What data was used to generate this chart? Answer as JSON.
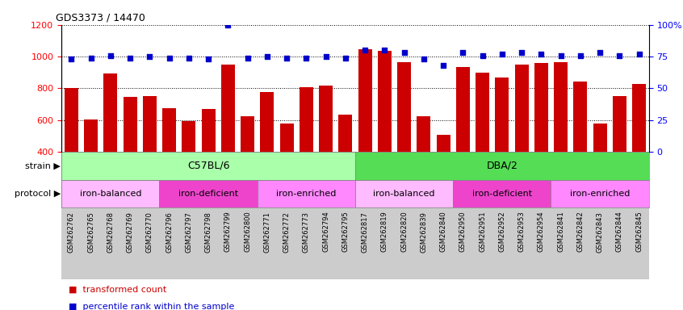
{
  "title": "GDS3373 / 14470",
  "samples": [
    "GSM262762",
    "GSM262765",
    "GSM262768",
    "GSM262769",
    "GSM262770",
    "GSM262796",
    "GSM262797",
    "GSM262798",
    "GSM262799",
    "GSM262800",
    "GSM262771",
    "GSM262772",
    "GSM262773",
    "GSM262794",
    "GSM262795",
    "GSM262817",
    "GSM262819",
    "GSM262820",
    "GSM262839",
    "GSM262840",
    "GSM262950",
    "GSM262951",
    "GSM262952",
    "GSM262953",
    "GSM262954",
    "GSM262841",
    "GSM262842",
    "GSM262843",
    "GSM262844",
    "GSM262845"
  ],
  "transformed_count": [
    800,
    605,
    895,
    748,
    752,
    675,
    595,
    670,
    950,
    625,
    775,
    580,
    808,
    820,
    635,
    1048,
    1035,
    965,
    622,
    505,
    935,
    900,
    870,
    950,
    960,
    965,
    843,
    580,
    750,
    830
  ],
  "percentile_rank": [
    73,
    74,
    76,
    74,
    75,
    74,
    74,
    73,
    100,
    74,
    75,
    74,
    74,
    75,
    74,
    80,
    80,
    78,
    73,
    68,
    78,
    76,
    77,
    78,
    77,
    76,
    76,
    78,
    76,
    77
  ],
  "bar_color": "#cc0000",
  "dot_color": "#0000cc",
  "ylim_left": [
    400,
    1200
  ],
  "ylim_right": [
    0,
    100
  ],
  "yticks_left": [
    400,
    600,
    800,
    1000,
    1200
  ],
  "yticks_right": [
    0,
    25,
    50,
    75,
    100
  ],
  "ytick_labels_right": [
    "0",
    "25",
    "50",
    "75",
    "100%"
  ],
  "strain_groups": [
    {
      "label": "C57BL/6",
      "start": 0,
      "end": 15,
      "color": "#aaffaa"
    },
    {
      "label": "DBA/2",
      "start": 15,
      "end": 30,
      "color": "#55dd55"
    }
  ],
  "protocol_groups": [
    {
      "label": "iron-balanced",
      "start": 0,
      "end": 5,
      "color": "#ffbbff"
    },
    {
      "label": "iron-deficient",
      "start": 5,
      "end": 10,
      "color": "#ee44cc"
    },
    {
      "label": "iron-enriched",
      "start": 10,
      "end": 15,
      "color": "#ff88ff"
    },
    {
      "label": "iron-balanced",
      "start": 15,
      "end": 20,
      "color": "#ffbbff"
    },
    {
      "label": "iron-deficient",
      "start": 20,
      "end": 25,
      "color": "#ee44cc"
    },
    {
      "label": "iron-enriched",
      "start": 25,
      "end": 30,
      "color": "#ff88ff"
    }
  ],
  "legend_bar_color": "#cc0000",
  "legend_dot_color": "#0000cc",
  "legend_bar_label": "transformed count",
  "legend_dot_label": "percentile rank within the sample",
  "xtick_bg_color": "#cccccc",
  "bar_width": 0.7
}
